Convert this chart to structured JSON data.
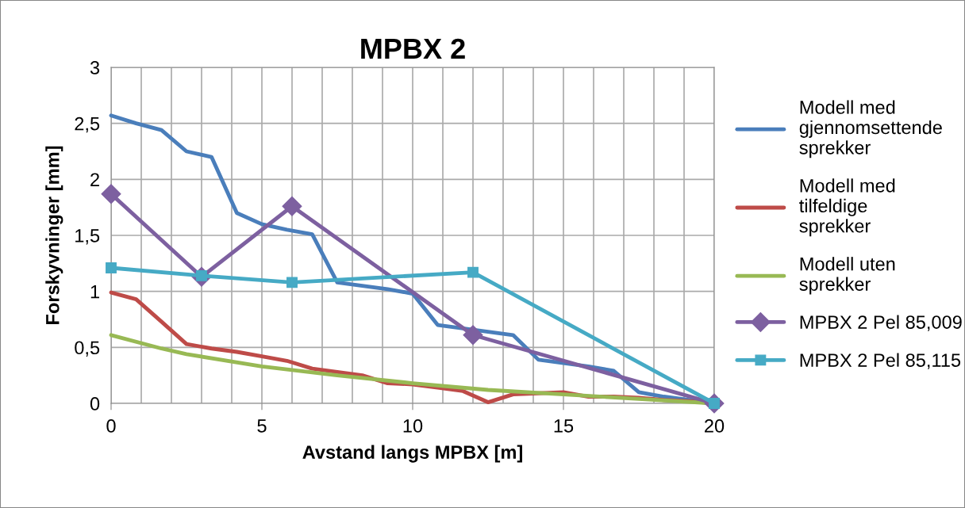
{
  "chart_data": {
    "type": "line",
    "title": "MPBX 2",
    "xlabel": "Avstand langs MPBX [m]",
    "ylabel": "Forskyvninger [mm]",
    "xlim": [
      0,
      20
    ],
    "ylim": [
      0,
      3
    ],
    "xticks": [
      0,
      {
        "value": 1,
        "label": null
      },
      {
        "value": 2,
        "label": null
      },
      {
        "value": 3,
        "label": null
      },
      {
        "value": 4,
        "label": null
      },
      5,
      {
        "value": 6,
        "label": null
      },
      {
        "value": 7,
        "label": null
      },
      {
        "value": 8,
        "label": null
      },
      {
        "value": 9,
        "label": null
      },
      10,
      {
        "value": 11,
        "label": null
      },
      {
        "value": 12,
        "label": null
      },
      {
        "value": 13,
        "label": null
      },
      {
        "value": 14,
        "label": null
      },
      15,
      {
        "value": 16,
        "label": null
      },
      {
        "value": 17,
        "label": null
      },
      {
        "value": 18,
        "label": null
      },
      {
        "value": 19,
        "label": null
      },
      20
    ],
    "yticks": [
      0,
      {
        "value": 0.5,
        "label": "0,5"
      },
      1,
      {
        "value": 1.5,
        "label": "1,5"
      },
      2,
      {
        "value": 2.5,
        "label": "2,5"
      },
      3
    ],
    "grid": true,
    "legend": "right",
    "series": [
      {
        "name": "Modell med gjennomsettende sprekker",
        "color": "#4a7ebb",
        "marker": "none",
        "x": [
          0,
          0.83,
          1.67,
          2.5,
          3.33,
          4.17,
          5,
          5.83,
          6.67,
          7.5,
          8.33,
          9.17,
          10,
          10.83,
          11.67,
          12.5,
          13.33,
          14.17,
          15,
          15.83,
          16.67,
          17.5,
          18.33,
          19.17,
          20
        ],
        "values": [
          2.57,
          2.5,
          2.44,
          2.25,
          2.2,
          1.7,
          1.6,
          1.55,
          1.51,
          1.08,
          1.05,
          1.02,
          0.98,
          0.7,
          0.67,
          0.64,
          0.61,
          0.39,
          0.36,
          0.33,
          0.29,
          0.1,
          0.06,
          0.03,
          0
        ]
      },
      {
        "name": "Modell med tilfeldige sprekker",
        "color": "#be4b48",
        "marker": "none",
        "x": [
          0,
          0.83,
          1.67,
          2.5,
          3.33,
          4.17,
          5,
          5.83,
          6.67,
          7.5,
          8.33,
          9.17,
          10,
          10.83,
          11.67,
          12.5,
          13.33,
          14.17,
          15,
          15.83,
          16.67,
          17.5,
          18.33,
          19.17,
          20
        ],
        "values": [
          0.99,
          0.93,
          0.73,
          0.53,
          0.49,
          0.46,
          0.42,
          0.38,
          0.31,
          0.28,
          0.25,
          0.18,
          0.17,
          0.14,
          0.11,
          0.01,
          0.08,
          0.09,
          0.1,
          0.06,
          0.06,
          0.05,
          0.03,
          0.02,
          0
        ]
      },
      {
        "name": "Modell uten sprekker",
        "color": "#98b954",
        "marker": "none",
        "x": [
          0,
          1.67,
          2.5,
          5,
          7.5,
          10,
          12.5,
          15,
          17.5,
          20
        ],
        "values": [
          0.61,
          0.49,
          0.44,
          0.33,
          0.25,
          0.18,
          0.12,
          0.08,
          0.04,
          0
        ]
      },
      {
        "name": "MPBX 2 Pel 85,009",
        "color": "#7d60a0",
        "marker": "diamond",
        "x": [
          0,
          3,
          6,
          12,
          20
        ],
        "values": [
          1.87,
          1.13,
          1.76,
          0.61,
          0
        ]
      },
      {
        "name": "MPBX 2 Pel 85,115",
        "color": "#46aac5",
        "marker": "square",
        "x": [
          0,
          3,
          6,
          12,
          20
        ],
        "values": [
          1.21,
          1.14,
          1.08,
          1.17,
          0
        ]
      }
    ]
  }
}
